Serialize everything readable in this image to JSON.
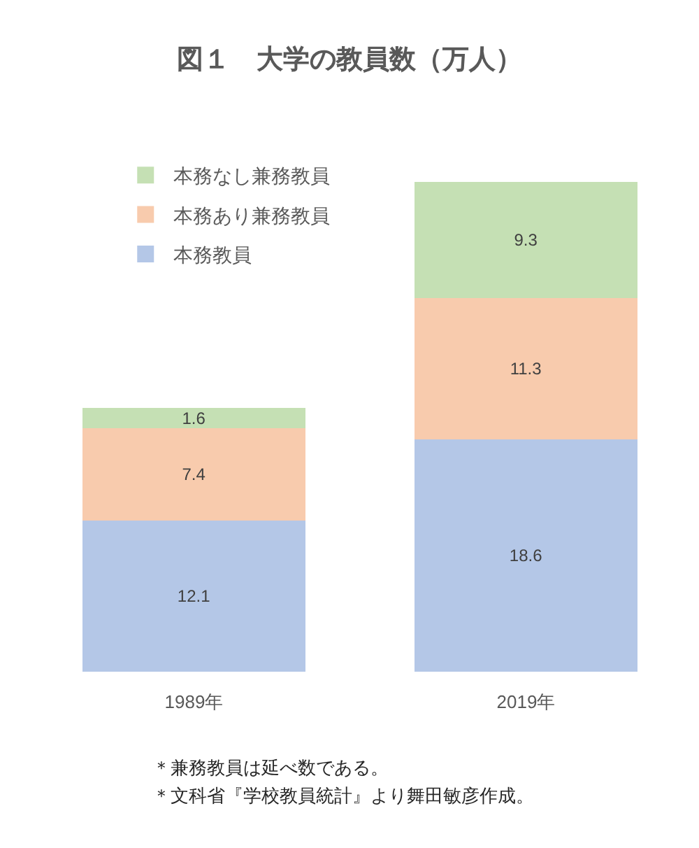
{
  "chart_data": {
    "type": "bar",
    "title": "図１　大学の教員数（万人）",
    "categories": [
      "1989年",
      "2019年"
    ],
    "series": [
      {
        "name": "本務教員",
        "color": "#b4c7e7",
        "values": [
          12.1,
          18.6
        ]
      },
      {
        "name": "本務あり兼務教員",
        "color": "#f8cbad",
        "values": [
          7.4,
          11.3
        ]
      },
      {
        "name": "本務なし兼務教員",
        "color": "#c5e0b4",
        "values": [
          1.6,
          9.3
        ]
      }
    ],
    "stacked": true,
    "data_labels": true,
    "legend": "top left",
    "tick_labels": "x",
    "annotations": [
      "＊兼務教員は延べ数である。",
      "＊文科省『学校教員統計』より舞田敏彦作成。"
    ]
  }
}
